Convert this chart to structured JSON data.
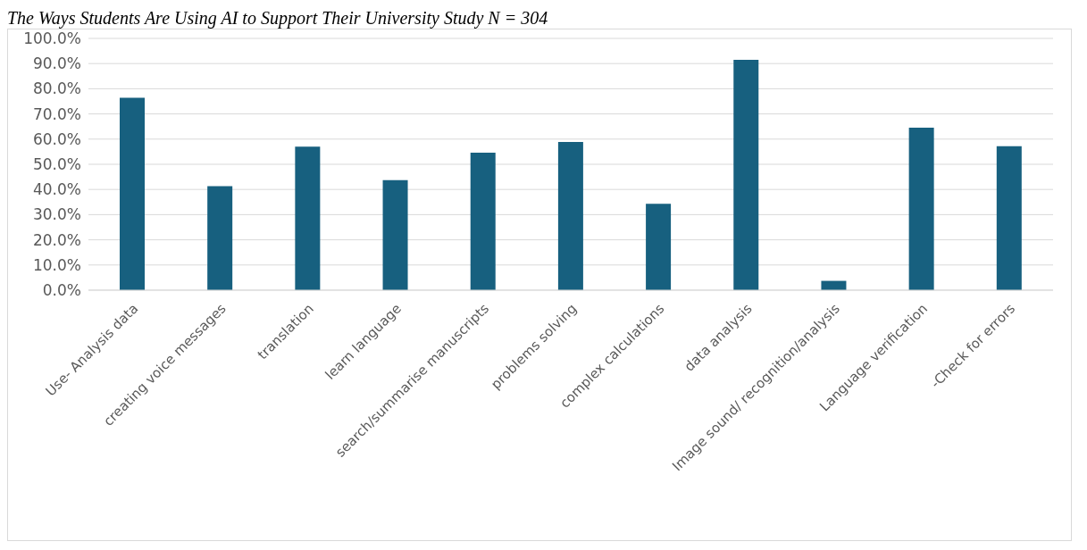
{
  "chart_data": {
    "type": "bar",
    "title": "The Ways Students Are Using AI to Support Their University Study N = 304",
    "categories": [
      "Use- Analysis data",
      "creating voice messages",
      "translation",
      "learn language",
      "search/summarise manuscripts",
      "problems solving",
      "complex calculations",
      "data analysis",
      "Image sound/ recognition/analysis",
      "Language verification",
      "-Check for errors"
    ],
    "values": [
      76.4,
      41.3,
      57.0,
      43.7,
      54.6,
      58.9,
      34.3,
      91.5,
      3.7,
      64.5,
      57.2
    ],
    "color": "#17607f",
    "ylim": [
      0,
      100
    ],
    "yticks": [
      {
        "value": 0,
        "label": "0.0%"
      },
      {
        "value": 10,
        "label": "10.0%"
      },
      {
        "value": 20,
        "label": "20.0%"
      },
      {
        "value": 30,
        "label": "30.0%"
      },
      {
        "value": 40,
        "label": "40.0%"
      },
      {
        "value": 50,
        "label": "50.0%"
      },
      {
        "value": 60,
        "label": "60.0%"
      },
      {
        "value": 70,
        "label": "70.0%"
      },
      {
        "value": 80,
        "label": "80.0%"
      },
      {
        "value": 90,
        "label": "90.0%"
      },
      {
        "value": 100,
        "label": "100.0%"
      }
    ],
    "grid": "y",
    "legend": false
  }
}
